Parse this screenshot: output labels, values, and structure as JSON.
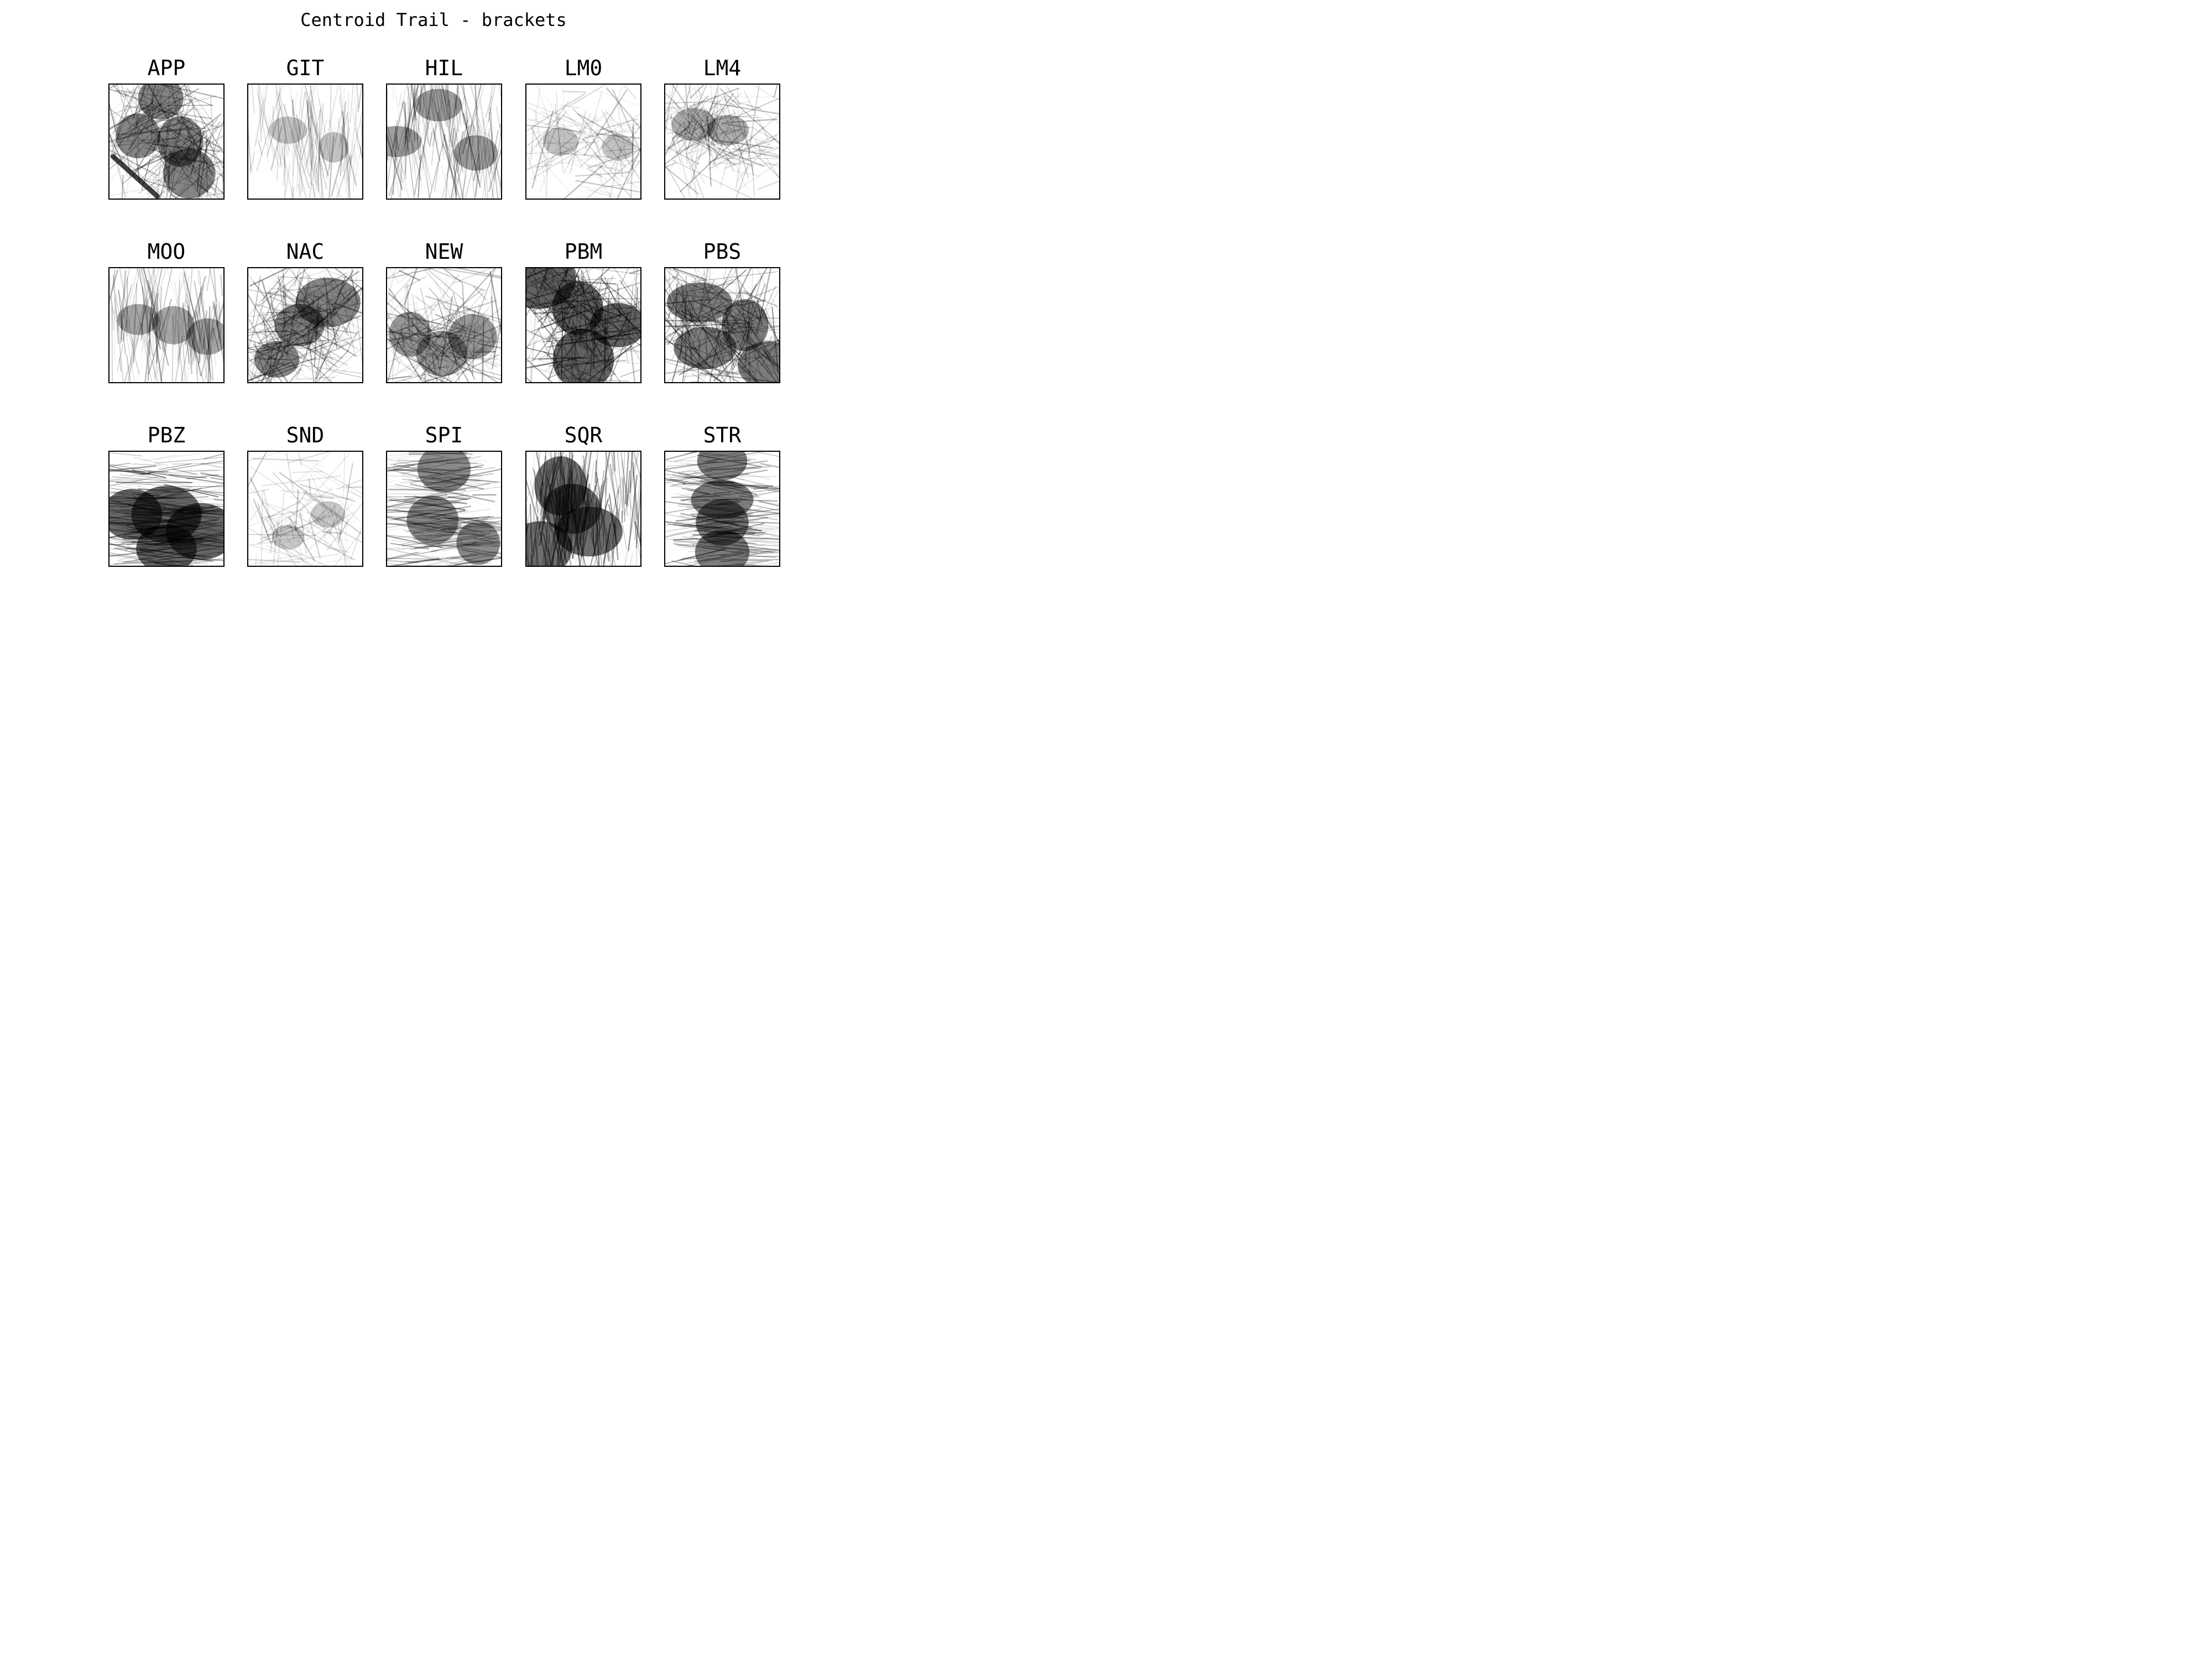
{
  "chart_data": {
    "type": "line",
    "title": "Centroid Trail - brackets",
    "grid": false,
    "ink_color": "#000000",
    "background_color": "#ffffff",
    "panels": [
      {
        "label": "APP",
        "density": 0.7,
        "dark_regions": [
          [
            0.62,
            0.5
          ],
          [
            0.7,
            0.78
          ],
          [
            0.25,
            0.45
          ],
          [
            0.45,
            0.12
          ]
        ],
        "diagonal_streak": true,
        "orientation": "mixed"
      },
      {
        "label": "GIT",
        "density": 0.25,
        "dark_regions": [
          [
            0.35,
            0.4
          ],
          [
            0.75,
            0.55
          ]
        ],
        "diagonal_streak": false,
        "orientation": "vertical"
      },
      {
        "label": "HIL",
        "density": 0.5,
        "dark_regions": [
          [
            0.08,
            0.5
          ],
          [
            0.45,
            0.18
          ],
          [
            0.78,
            0.6
          ]
        ],
        "diagonal_streak": false,
        "orientation": "vertical"
      },
      {
        "label": "LM0",
        "density": 0.25,
        "dark_regions": [
          [
            0.3,
            0.5
          ],
          [
            0.8,
            0.55
          ]
        ],
        "diagonal_streak": false,
        "orientation": "mixed"
      },
      {
        "label": "LM4",
        "density": 0.4,
        "dark_regions": [
          [
            0.55,
            0.4
          ],
          [
            0.25,
            0.35
          ]
        ],
        "diagonal_streak": false,
        "orientation": "mixed"
      },
      {
        "label": "MOO",
        "density": 0.45,
        "dark_regions": [
          [
            0.56,
            0.5
          ],
          [
            0.86,
            0.6
          ],
          [
            0.25,
            0.45
          ]
        ],
        "diagonal_streak": false,
        "orientation": "vertical"
      },
      {
        "label": "NAC",
        "density": 0.7,
        "dark_regions": [
          [
            0.45,
            0.5
          ],
          [
            0.7,
            0.3
          ],
          [
            0.25,
            0.8
          ]
        ],
        "diagonal_streak": false,
        "orientation": "mixed"
      },
      {
        "label": "NEW",
        "density": 0.55,
        "dark_regions": [
          [
            0.2,
            0.58
          ],
          [
            0.75,
            0.6
          ],
          [
            0.48,
            0.75
          ]
        ],
        "diagonal_streak": false,
        "orientation": "mixed"
      },
      {
        "label": "PBM",
        "density": 0.92,
        "dark_regions": [
          [
            0.45,
            0.35
          ],
          [
            0.8,
            0.5
          ],
          [
            0.5,
            0.8
          ],
          [
            0.1,
            0.1
          ]
        ],
        "diagonal_streak": false,
        "orientation": "mixed"
      },
      {
        "label": "PBS",
        "density": 0.75,
        "dark_regions": [
          [
            0.3,
            0.3
          ],
          [
            0.35,
            0.7
          ],
          [
            0.7,
            0.5
          ],
          [
            0.9,
            0.85
          ]
        ],
        "diagonal_streak": false,
        "orientation": "mixed"
      },
      {
        "label": "PBZ",
        "density": 0.9,
        "dark_regions": [
          [
            0.5,
            0.55
          ],
          [
            0.2,
            0.55
          ],
          [
            0.8,
            0.7
          ],
          [
            0.5,
            0.85
          ]
        ],
        "diagonal_streak": false,
        "orientation": "horizontal"
      },
      {
        "label": "SND",
        "density": 0.2,
        "dark_regions": [
          [
            0.35,
            0.75
          ],
          [
            0.7,
            0.55
          ]
        ],
        "diagonal_streak": false,
        "orientation": "mixed"
      },
      {
        "label": "SPI",
        "density": 0.65,
        "dark_regions": [
          [
            0.4,
            0.6
          ],
          [
            0.5,
            0.15
          ],
          [
            0.8,
            0.8
          ]
        ],
        "diagonal_streak": false,
        "orientation": "horizontal"
      },
      {
        "label": "SQR",
        "density": 0.85,
        "dark_regions": [
          [
            0.4,
            0.5
          ],
          [
            0.3,
            0.3
          ],
          [
            0.55,
            0.7
          ],
          [
            0.12,
            0.85
          ]
        ],
        "diagonal_streak": false,
        "orientation": "vertical"
      },
      {
        "label": "STR",
        "density": 0.75,
        "dark_regions": [
          [
            0.5,
            0.08
          ],
          [
            0.5,
            0.42
          ],
          [
            0.5,
            0.88
          ],
          [
            0.5,
            0.62
          ]
        ],
        "diagonal_streak": false,
        "orientation": "horizontal"
      }
    ]
  }
}
